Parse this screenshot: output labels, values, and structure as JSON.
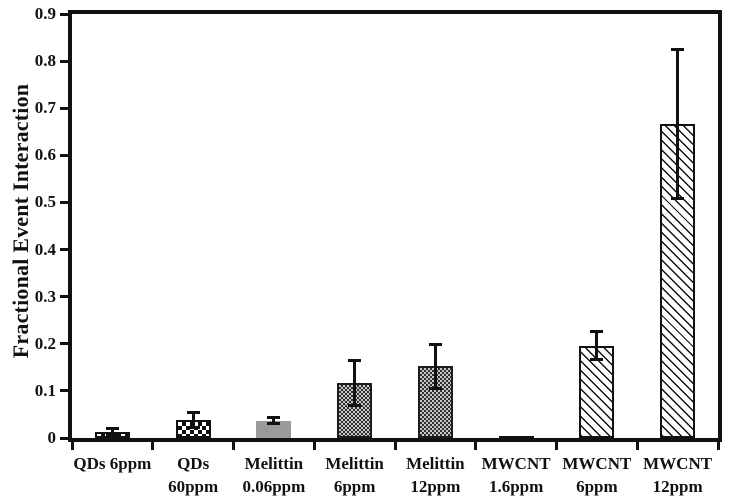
{
  "chart_data": {
    "type": "bar",
    "title": "",
    "ylabel": "Fractional Event Interaction",
    "xlabel": "",
    "ylim": [
      0,
      0.9
    ],
    "ytick_labels": [
      "0",
      "0.1",
      "0.2",
      "0.3",
      "0.4",
      "0.5",
      "0.6",
      "0.7",
      "0.8",
      "0.9"
    ],
    "grid": false,
    "legend": "none",
    "categories": [
      "QDs 6ppm",
      "QDs\n60ppm",
      "Melittin\n0.06ppm",
      "Melittin\n6ppm",
      "Melittin\n12ppm",
      "MWCNT\n1.6ppm",
      "MWCNT\n6ppm",
      "MWCNT\n12ppm"
    ],
    "values": [
      0.013,
      0.038,
      0.037,
      0.117,
      0.152,
      0.003,
      0.196,
      0.667
    ],
    "errors": [
      0.008,
      0.017,
      0.008,
      0.049,
      0.047,
      0,
      0.031,
      0.159
    ],
    "bar_patterns": [
      "checkerboard",
      "checkerboard",
      "solid-gray",
      "fine-checkerboard",
      "fine-checkerboard",
      "solid-dark",
      "diagonal-hatch",
      "diagonal-hatch"
    ],
    "colors": {
      "axis": "#111111",
      "text": "#111111",
      "bar_border": "#111111",
      "gray_fill": "#9a9a9a",
      "background": "#ffffff"
    }
  }
}
